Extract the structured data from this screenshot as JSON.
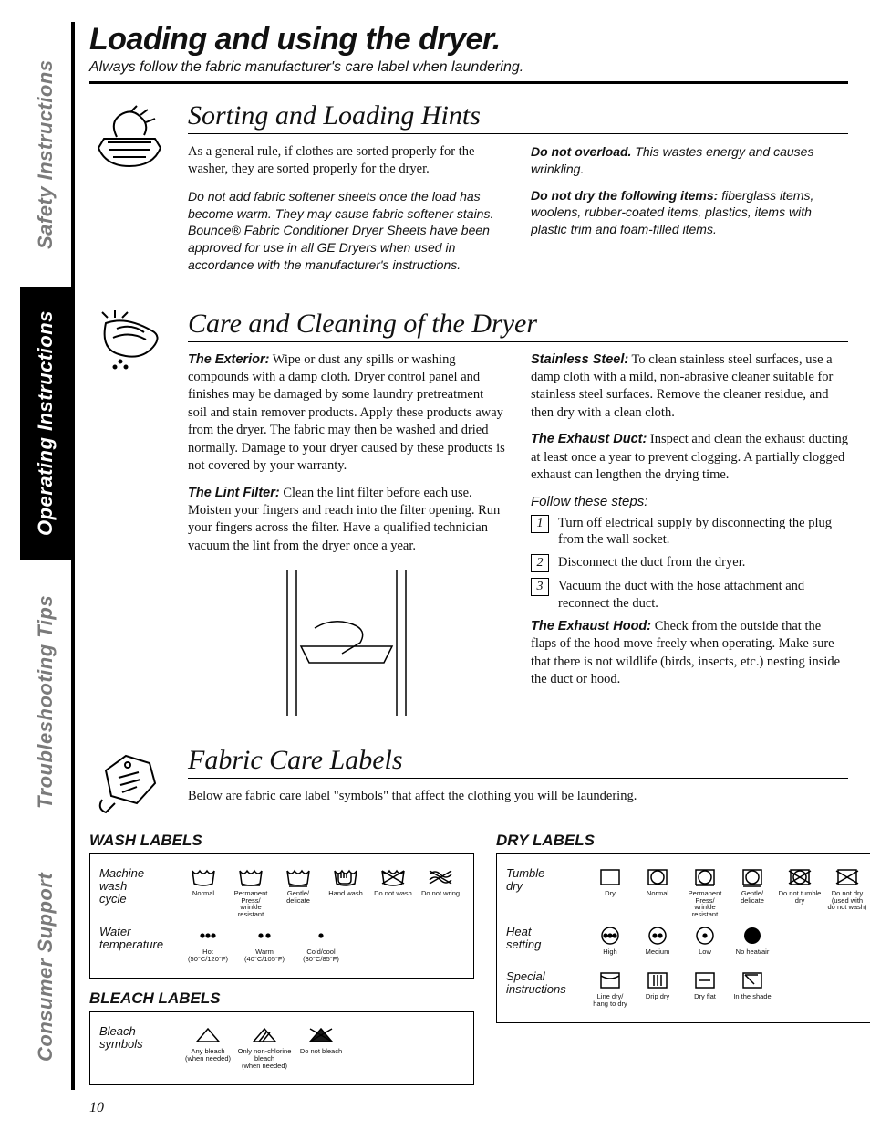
{
  "tabs": {
    "safety": "Safety Instructions",
    "operating": "Operating Instructions",
    "troubleshooting": "Troubleshooting Tips",
    "consumer": "Consumer Support"
  },
  "pageTitle": "Loading and using the dryer.",
  "pageSubtitle": "Always follow the fabric manufacturer's care label when laundering.",
  "pageNumber": "10",
  "sorting": {
    "title": "Sorting and Loading Hints",
    "p1": "As a general rule, if clothes are sorted properly for the washer, they are sorted properly for the dryer.",
    "p2": "Do not add fabric softener sheets once the load has become warm. They may cause fabric softener stains. Bounce® Fabric Conditioner Dryer Sheets have been approved for use in all GE Dryers when used in accordance with the manufacturer's instructions.",
    "overloadLead": "Do not overload.",
    "overloadRest": " This wastes energy and causes wrinkling.",
    "dontDryLead": "Do not dry the following items:",
    "dontDryRest": " fiberglass items, woolens, rubber-coated items, plastics, items with plastic trim and foam-filled items."
  },
  "care": {
    "title": "Care and Cleaning of the Dryer",
    "exteriorLead": "The Exterior:",
    "exteriorRest": " Wipe or dust any spills or washing compounds with a damp cloth. Dryer control panel and finishes may be damaged by some laundry pretreatment soil and stain remover products. Apply these products away from the dryer. The fabric may then be washed and dried normally. Damage to your dryer caused by these products is not covered by your warranty.",
    "lintLead": "The Lint Filter:",
    "lintRest": " Clean the lint filter before each use. Moisten your fingers and reach into the filter opening. Run your fingers across the filter. Have a qualified technician vacuum the lint from the dryer once a year.",
    "steelLead": "Stainless Steel:",
    "steelRest": " To clean stainless steel surfaces, use a damp cloth with a mild, non-abrasive cleaner suitable for stainless steel surfaces. Remove the cleaner residue, and then dry with a clean cloth.",
    "ductLead": "The Exhaust Duct:",
    "ductRest": " Inspect and clean the exhaust ducting at least once a year to prevent clogging. A partially clogged exhaust can lengthen the drying time.",
    "stepsHead": "Follow these steps:",
    "steps": [
      "Turn off electrical supply by disconnecting the plug from the wall socket.",
      "Disconnect the duct from the dryer.",
      "Vacuum the duct with the hose attachment and reconnect the duct."
    ],
    "stepNums": [
      "1",
      "2",
      "3"
    ],
    "hoodLead": "The Exhaust Hood:",
    "hoodRest": " Check from the outside that the flaps of the hood move freely when operating. Make sure that there is not wildlife (birds, insects, etc.) nesting inside the duct or hood."
  },
  "fabric": {
    "title": "Fabric Care Labels",
    "intro": "Below are fabric care label \"symbols\" that affect the clothing you will be laundering."
  },
  "washHead": "WASH LABELS",
  "bleachHead": "BLEACH LABELS",
  "dryHead": "DRY LABELS",
  "wash": {
    "cycleLabel": "Machine\nwash\ncycle",
    "tempLabel": "Water\ntemperature",
    "cycle": [
      {
        "cap": "Normal"
      },
      {
        "cap": "Permanent Press/\nwrinkle resistant"
      },
      {
        "cap": "Gentle/\ndelicate"
      },
      {
        "cap": "Hand wash"
      },
      {
        "cap": "Do not wash"
      },
      {
        "cap": "Do not wring"
      }
    ],
    "temp": [
      {
        "cap": "Hot\n(50°C/120°F)"
      },
      {
        "cap": "Warm\n(40°C/105°F)"
      },
      {
        "cap": "Cold/cool\n(30°C/85°F)"
      }
    ]
  },
  "bleach": {
    "rowLabel": "Bleach\nsymbols",
    "items": [
      {
        "cap": "Any bleach\n(when needed)"
      },
      {
        "cap": "Only non-chlorine bleach\n(when needed)"
      },
      {
        "cap": "Do not bleach"
      }
    ]
  },
  "dry": {
    "tumbleLabel": "Tumble\ndry",
    "heatLabel": "Heat\nsetting",
    "specialLabel": "Special\ninstructions",
    "tumble": [
      {
        "cap": "Dry"
      },
      {
        "cap": "Normal"
      },
      {
        "cap": "Permanent Press/\nwrinkle resistant"
      },
      {
        "cap": "Gentle/\ndelicate"
      },
      {
        "cap": "Do not tumble dry"
      },
      {
        "cap": "Do not dry\n(used with\ndo not wash)"
      }
    ],
    "heat": [
      {
        "cap": "High"
      },
      {
        "cap": "Medium"
      },
      {
        "cap": "Low"
      },
      {
        "cap": "No heat/air"
      }
    ],
    "special": [
      {
        "cap": "Line dry/\nhang to dry"
      },
      {
        "cap": "Drip dry"
      },
      {
        "cap": "Dry flat"
      },
      {
        "cap": "In the shade"
      }
    ]
  }
}
